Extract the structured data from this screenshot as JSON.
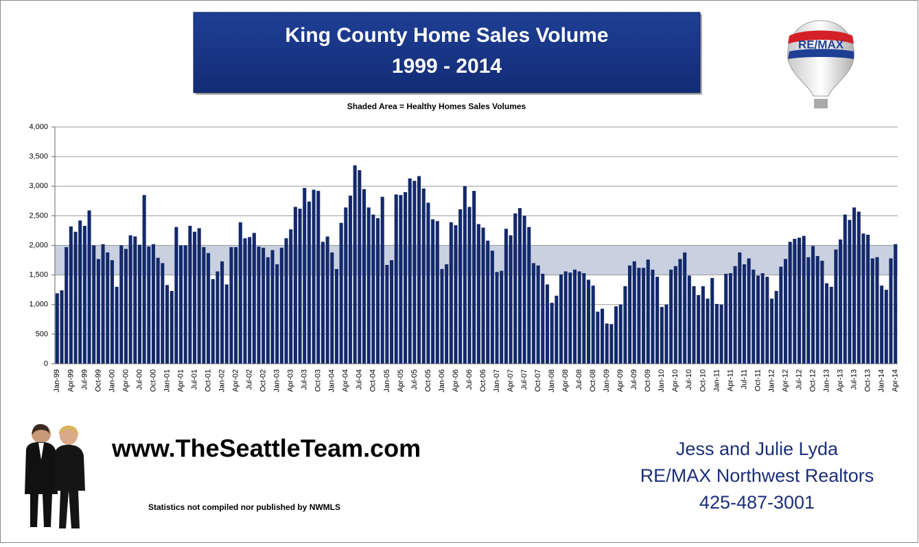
{
  "chart_data": {
    "type": "bar",
    "title": [
      "King County Home Sales Volume",
      "1999 - 2014"
    ],
    "subtitle": "Shaded Area = Healthy Homes Sales Volumes",
    "shaded_band": [
      1500,
      2000
    ],
    "shaded_color": "#c9d0df",
    "color": "#13296b",
    "grid": true,
    "ylim": [
      0,
      4000
    ],
    "yticks": [
      0,
      500,
      {
        "value": 1000,
        "label": "1,000"
      },
      {
        "value": 1500,
        "label": "1,500"
      },
      {
        "value": 2000,
        "label": "2,000"
      },
      {
        "value": 2500,
        "label": "2,500"
      },
      {
        "value": 3000,
        "label": "3,000"
      },
      {
        "value": 3500,
        "label": "3,500"
      },
      {
        "value": 4000,
        "label": "4,000"
      }
    ],
    "categories": [
      "Jan-99",
      null,
      null,
      "Apr-99",
      null,
      null,
      "Jul-99",
      null,
      null,
      "Oct-99",
      null,
      null,
      "Jan-00",
      null,
      null,
      "Apr-00",
      null,
      null,
      "Jul-00",
      null,
      null,
      "Oct-00",
      null,
      null,
      "Jan-01",
      null,
      null,
      "Apr-01",
      null,
      null,
      "Jul-01",
      null,
      null,
      "Oct-01",
      null,
      null,
      "Jan-02",
      null,
      null,
      "Apr-02",
      null,
      null,
      "Jul-02",
      null,
      null,
      "Oct-02",
      null,
      null,
      "Jan-03",
      null,
      null,
      "Apr-03",
      null,
      null,
      "Jul-03",
      null,
      null,
      "Oct-03",
      null,
      null,
      "Jan-04",
      null,
      null,
      "Apr-04",
      null,
      null,
      "Jul-04",
      null,
      null,
      "Oct-04",
      null,
      null,
      "Jan-05",
      null,
      null,
      "Apr-05",
      null,
      null,
      "Jul-05",
      null,
      null,
      "Oct-05",
      null,
      null,
      "Jan-06",
      null,
      null,
      "Apr-06",
      null,
      null,
      "Jul-06",
      null,
      null,
      "Oct-06",
      null,
      null,
      "Jan-07",
      null,
      null,
      "Apr-07",
      null,
      null,
      "Jul-07",
      null,
      null,
      "Oct-07",
      null,
      null,
      "Jan-08",
      null,
      null,
      "Apr-08",
      null,
      null,
      "Jul-08",
      null,
      null,
      "Oct-08",
      null,
      null,
      "Jan-09",
      null,
      null,
      "Apr-09",
      null,
      null,
      "Jul-09",
      null,
      null,
      "Oct-09",
      null,
      null,
      "Jan-10",
      null,
      null,
      "Apr-10",
      null,
      null,
      "Jul-10",
      null,
      null,
      "Oct-10",
      null,
      null,
      "Jan-11",
      null,
      null,
      "Apr-11",
      null,
      null,
      "Jul-11",
      null,
      null,
      "Oct-11",
      null,
      null,
      "Jan-12",
      null,
      null,
      "Apr-12",
      null,
      null,
      "Jul-12",
      null,
      null,
      "Oct-12",
      null,
      null,
      "Jan-13",
      null,
      null,
      "Apr-13",
      null,
      null,
      "Jul-13",
      null,
      null,
      "Oct-13",
      null,
      null,
      "Jan-14",
      null,
      null,
      "Apr-14"
    ],
    "values": [
      1190,
      1240,
      1970,
      2320,
      2230,
      2420,
      2330,
      2590,
      2000,
      1770,
      2020,
      1880,
      1750,
      1300,
      2000,
      1940,
      2170,
      2150,
      2010,
      2850,
      1980,
      2020,
      1790,
      1700,
      1330,
      1230,
      2310,
      2000,
      2000,
      2330,
      2230,
      2290,
      1970,
      1870,
      1430,
      1560,
      1730,
      1340,
      1970,
      1970,
      2390,
      2120,
      2140,
      2210,
      1980,
      1960,
      1800,
      1920,
      1680,
      1960,
      2120,
      2270,
      2650,
      2620,
      2970,
      2740,
      2940,
      2920,
      2060,
      2150,
      1880,
      1600,
      2380,
      2640,
      2840,
      3350,
      3270,
      2950,
      2640,
      2520,
      2460,
      2820,
      1670,
      1750,
      2860,
      2850,
      2900,
      3130,
      3090,
      3170,
      2960,
      2720,
      2440,
      2410,
      1600,
      1680,
      2390,
      2340,
      2610,
      3000,
      2650,
      2920,
      2360,
      2300,
      2080,
      1910,
      1550,
      1570,
      2280,
      2170,
      2540,
      2630,
      2500,
      2310,
      1700,
      1660,
      1520,
      1340,
      1030,
      1150,
      1510,
      1560,
      1540,
      1590,
      1560,
      1530,
      1420,
      1320,
      880,
      930,
      680,
      670,
      970,
      1000,
      1310,
      1660,
      1730,
      1620,
      1620,
      1760,
      1590,
      1470,
      960,
      1000,
      1590,
      1650,
      1770,
      1880,
      1490,
      1310,
      1160,
      1310,
      1100,
      1450,
      1010,
      1000,
      1520,
      1530,
      1650,
      1880,
      1680,
      1780,
      1590,
      1490,
      1530,
      1470,
      1100,
      1230,
      1640,
      1770,
      2060,
      2110,
      2130,
      2160,
      1800,
      1990,
      1820,
      1740,
      1360,
      1300,
      1930,
      2100,
      2520,
      2430,
      2640,
      2570,
      2200,
      2180,
      1780,
      1800,
      1320,
      1250,
      1780,
      2020
    ]
  },
  "logo_text": "RE/MAX",
  "website": "www.TheSeattleTeam.com",
  "disclaimer": "Statistics not compiled nor published by NWMLS",
  "contact": [
    "Jess and Julie Lyda",
    "RE/MAX Northwest Realtors",
    "425-487-3001"
  ]
}
